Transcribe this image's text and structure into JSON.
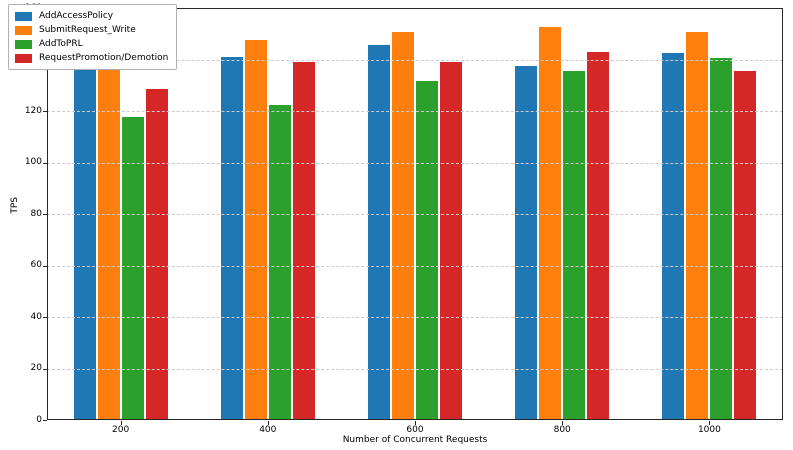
{
  "chart_data": {
    "type": "bar",
    "title": "",
    "xlabel": "Number of Concurrent Requests",
    "ylabel": "TPS",
    "categories": [
      "200",
      "400",
      "600",
      "800",
      "1000"
    ],
    "series": [
      {
        "name": "AddAccessPolicy",
        "color": "#1f77b4",
        "values": [
          136.5,
          141.0,
          145.5,
          137.5,
          142.5
        ]
      },
      {
        "name": "SubmitRequest_Write",
        "color": "#ff7f0e",
        "values": [
          139.5,
          147.5,
          150.5,
          152.5,
          150.5
        ]
      },
      {
        "name": "AddToPRL",
        "color": "#2ca02c",
        "values": [
          117.5,
          122.5,
          131.5,
          135.5,
          140.5
        ]
      },
      {
        "name": "RequestPromotion/Demotion",
        "color": "#d62728",
        "values": [
          128.5,
          139.0,
          139.0,
          143.0,
          135.5
        ]
      }
    ],
    "ylim": [
      0,
      160
    ],
    "yticks": [
      0,
      20,
      40,
      60,
      80,
      100,
      120,
      140,
      160
    ],
    "grid": true,
    "grid_style": "dashed",
    "grid_color": "#cbcbcb",
    "legend_position": "upper left",
    "axes_color": "#262626",
    "background_color": "#ffffff"
  }
}
